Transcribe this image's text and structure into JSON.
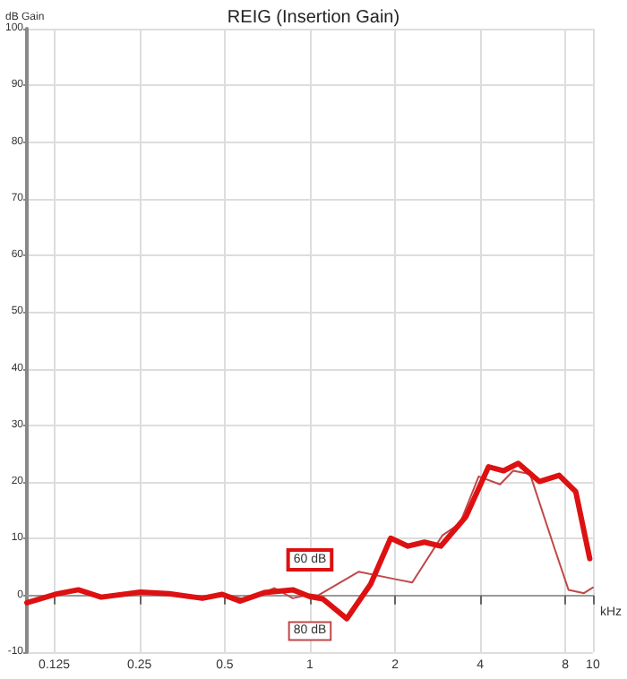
{
  "chart_data": {
    "type": "line",
    "title": "REIG (Insertion Gain)",
    "xlabel": "kHz",
    "ylabel": "dB Gain",
    "log": "x",
    "xlim": [
      0.1,
      10
    ],
    "xticks": [
      0.125,
      0.25,
      0.5,
      1,
      2,
      4,
      8,
      10
    ],
    "ylim": [
      -10,
      100
    ],
    "yticks": [
      -10,
      0,
      10,
      20,
      30,
      40,
      50,
      60,
      70,
      80,
      90,
      100
    ],
    "grid": true,
    "marker": "none",
    "line_style": "solid",
    "series": [
      {
        "name": "60 dB",
        "color": "#dd1111",
        "x": [
          0.1,
          0.128,
          0.152,
          0.183,
          0.252,
          0.318,
          0.417,
          0.49,
          0.565,
          0.69,
          0.87,
          1.0,
          1.11,
          1.35,
          1.64,
          1.93,
          2.22,
          2.54,
          2.9,
          3.56,
          4.28,
          4.84,
          5.45,
          6.47,
          7.6,
          8.7,
          9.75
        ],
        "values": [
          -1.3,
          0.3,
          1.0,
          -0.3,
          0.6,
          0.3,
          -0.5,
          0.2,
          -1.0,
          0.5,
          1.0,
          -0.2,
          -0.6,
          -4.1,
          2.0,
          10.1,
          8.7,
          9.4,
          8.7,
          13.9,
          22.7,
          22.0,
          23.3,
          20.1,
          21.2,
          18.3,
          6.5
        ]
      },
      {
        "name": "80 dB",
        "color": "#c04848",
        "x": [
          0.1,
          0.128,
          0.152,
          0.183,
          0.252,
          0.318,
          0.417,
          0.49,
          0.6,
          0.75,
          0.87,
          1.0,
          1.07,
          1.49,
          1.99,
          2.3,
          2.94,
          3.39,
          3.95,
          4.7,
          5.23,
          6.0,
          7.3,
          8.2,
          9.3,
          10
        ],
        "values": [
          -1.2,
          0.4,
          0.9,
          -0.1,
          0.7,
          0.4,
          -0.3,
          0.3,
          -0.8,
          1.3,
          -0.5,
          0.2,
          0.0,
          4.2,
          2.9,
          2.3,
          10.6,
          12.7,
          21.0,
          19.6,
          22.0,
          21.4,
          8.5,
          1.0,
          0.4,
          1.4
        ]
      }
    ]
  }
}
